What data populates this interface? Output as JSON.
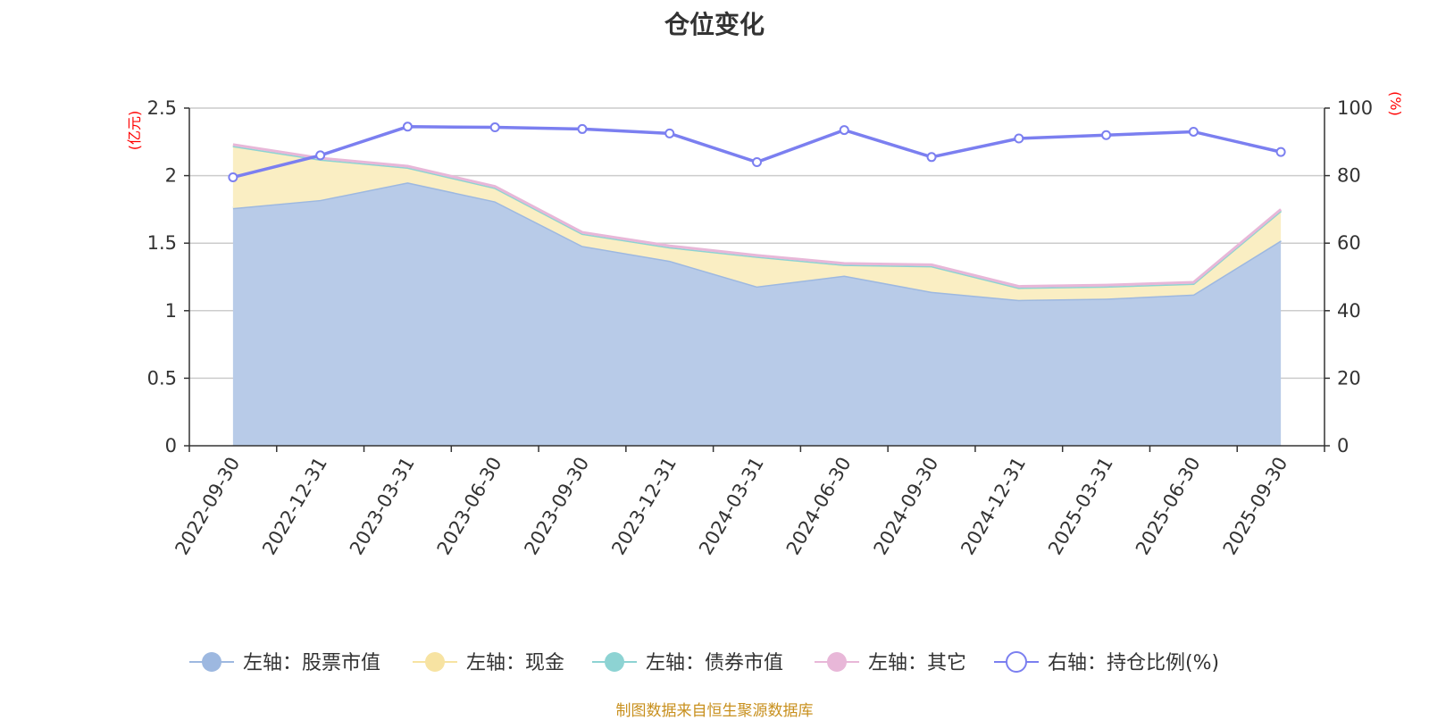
{
  "chart_data": {
    "type": "area",
    "title": "仓位变化",
    "categories": [
      "2022-09-30",
      "2022-12-31",
      "2023-03-31",
      "2023-06-30",
      "2023-09-30",
      "2023-12-31",
      "2024-03-31",
      "2024-06-30",
      "2024-09-30",
      "2024-12-31",
      "2025-03-31",
      "2025-06-30",
      "2025-09-30"
    ],
    "left_axis": {
      "unit": "(亿元)",
      "range": [
        0,
        2.5
      ],
      "ticks": [
        "0",
        "0.5",
        "1",
        "1.5",
        "2",
        "2.5"
      ],
      "tick_values": [
        0,
        0.5,
        1,
        1.5,
        2,
        2.5
      ]
    },
    "right_axis": {
      "unit": "(%)",
      "range": [
        0,
        100
      ],
      "ticks": [
        "0",
        "20",
        "40",
        "60",
        "80",
        "100"
      ],
      "tick_values": [
        0,
        20,
        40,
        60,
        80,
        100
      ]
    },
    "series": [
      {
        "name": "左轴：股票市值",
        "axis": "left",
        "color": "#9db8e0",
        "fill": "#b8cbe8",
        "values": [
          1.76,
          1.82,
          1.95,
          1.81,
          1.48,
          1.37,
          1.18,
          1.26,
          1.14,
          1.08,
          1.09,
          1.12,
          1.52
        ]
      },
      {
        "name": "左轴：现金",
        "axis": "left",
        "color": "#f7e3a2",
        "fill": "#faeec3",
        "values": [
          0.46,
          0.3,
          0.11,
          0.1,
          0.09,
          0.1,
          0.22,
          0.08,
          0.19,
          0.09,
          0.09,
          0.08,
          0.22
        ]
      },
      {
        "name": "左轴：债券市值",
        "axis": "left",
        "color": "#8dd3d3",
        "fill": "#b8e3e3",
        "values": [
          0,
          0,
          0,
          0,
          0,
          0,
          0,
          0,
          0,
          0,
          0,
          0,
          0
        ]
      },
      {
        "name": "左轴：其它",
        "axis": "left",
        "color": "#e8b7d8",
        "fill": "#f0d0e4",
        "values": [
          0.01,
          0.01,
          0.01,
          0.01,
          0.01,
          0.01,
          0.01,
          0.01,
          0.01,
          0.01,
          0.01,
          0.01,
          0.01
        ]
      },
      {
        "name": "右轴：持仓比例(%)",
        "axis": "right",
        "color": "#7b7ff0",
        "values": [
          79.5,
          86.0,
          94.5,
          94.3,
          93.8,
          92.5,
          84.0,
          93.5,
          85.5,
          91.0,
          92.0,
          93.0,
          87.0
        ]
      }
    ]
  },
  "source_note": "制图数据来自恒生聚源数据库"
}
